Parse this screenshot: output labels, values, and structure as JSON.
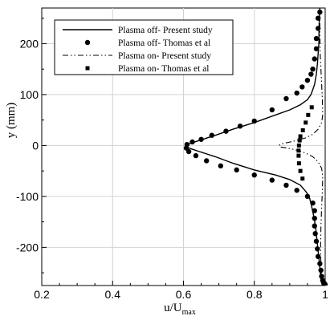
{
  "chart_data": {
    "type": "line",
    "title": "",
    "xlabel": "u/U",
    "xlabel_sub": "max",
    "ylabel": "y (mm)",
    "xlim": [
      0.2,
      1.0
    ],
    "ylim": [
      -275,
      270
    ],
    "xticks": [
      0.2,
      0.4,
      0.6,
      0.8,
      1.0
    ],
    "xtick_labels": [
      "0.2",
      "0.4",
      "0.6",
      "0.8",
      "1"
    ],
    "yticks": [
      -200,
      -100,
      0,
      100,
      200
    ],
    "ytick_labels": [
      "-200",
      "-100",
      "0",
      "100",
      "200"
    ],
    "grid": true,
    "legend_position": "top-left",
    "series": [
      {
        "name": "Plasma off- Present study",
        "style": "solid-line",
        "color": "#000000",
        "x": [
          0.985,
          0.983,
          0.982,
          0.98,
          0.978,
          0.975,
          0.97,
          0.965,
          0.96,
          0.95,
          0.93,
          0.9,
          0.86,
          0.8,
          0.74,
          0.69,
          0.645,
          0.615,
          0.608,
          0.615,
          0.645,
          0.69,
          0.74,
          0.8,
          0.86,
          0.9,
          0.93,
          0.945,
          0.955,
          0.962,
          0.968,
          0.973,
          0.976,
          0.979,
          0.982,
          0.985,
          0.988,
          0.99,
          0.992
        ],
        "y": [
          270,
          240,
          200,
          180,
          160,
          140,
          120,
          110,
          100,
          90,
          80,
          70,
          60,
          45,
          32,
          20,
          10,
          3,
          0,
          -5,
          -12,
          -22,
          -35,
          -48,
          -58,
          -67,
          -78,
          -90,
          -100,
          -120,
          -140,
          -160,
          -180,
          -200,
          -220,
          -240,
          -260,
          -270,
          -275
        ]
      },
      {
        "name": "Plasma off- Thomas et al",
        "style": "circle-markers",
        "color": "#000000",
        "x": [
          0.985,
          0.98,
          0.98,
          0.975,
          0.975,
          0.97,
          0.965,
          0.96,
          0.95,
          0.935,
          0.92,
          0.89,
          0.85,
          0.8,
          0.76,
          0.72,
          0.68,
          0.65,
          0.625,
          0.61,
          0.608,
          0.615,
          0.635,
          0.665,
          0.705,
          0.75,
          0.8,
          0.85,
          0.89,
          0.92,
          0.95,
          0.965,
          0.97,
          0.97,
          0.97,
          0.972,
          0.975,
          0.978,
          0.98,
          0.985,
          0.988,
          0.99,
          0.993,
          0.997,
          1.0
        ],
        "y": [
          262,
          250,
          230,
          210,
          190,
          170,
          150,
          140,
          128,
          115,
          103,
          92,
          70,
          48,
          38,
          28,
          20,
          12,
          7,
          2,
          -5,
          -12,
          -20,
          -30,
          -40,
          -48,
          -58,
          -68,
          -78,
          -88,
          -100,
          -113,
          -128,
          -143,
          -158,
          -173,
          -188,
          -203,
          -218,
          -232,
          -245,
          -257,
          -265,
          -270,
          -273
        ]
      },
      {
        "name": "Plasma on- Present study",
        "style": "dash-dot-line",
        "color": "#000000",
        "x": [
          0.985,
          0.985,
          0.986,
          0.988,
          0.99,
          0.992,
          0.993,
          0.99,
          0.98,
          0.965,
          0.945,
          0.92,
          0.895,
          0.875,
          0.87,
          0.875,
          0.9,
          0.925,
          0.945,
          0.965,
          0.98,
          0.99,
          0.993,
          0.992,
          0.99,
          0.988,
          0.987,
          0.988,
          0.99
        ],
        "y": [
          270,
          220,
          180,
          150,
          120,
          90,
          60,
          45,
          32,
          22,
          15,
          10,
          6,
          3,
          0,
          -3,
          -6,
          -10,
          -15,
          -22,
          -32,
          -45,
          -60,
          -90,
          -120,
          -160,
          -200,
          -240,
          -270
        ]
      },
      {
        "name": "Plasma on- Thomas et al",
        "style": "square-markers",
        "color": "#000000",
        "x": [
          0.962,
          0.952,
          0.945,
          0.937,
          0.93,
          0.928,
          0.926,
          0.925,
          0.925,
          0.926,
          0.93,
          0.936
        ],
        "y": [
          75,
          60,
          45,
          30,
          18,
          10,
          0,
          -10,
          -20,
          -35,
          -50,
          -65
        ]
      }
    ]
  }
}
